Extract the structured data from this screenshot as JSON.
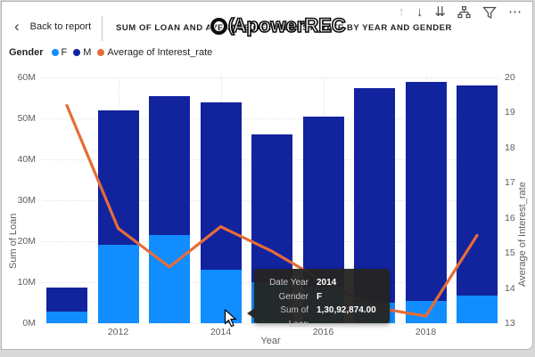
{
  "header": {
    "back_label": "Back to report",
    "title": "SUM OF LOAN AND AVERAGE OF INTEREST_RATE BY YEAR AND GENDER"
  },
  "toolbar": {
    "icons": [
      {
        "name": "drill-up",
        "glyph": "↑",
        "disabled": true
      },
      {
        "name": "drill-down",
        "glyph": "↓",
        "disabled": false
      },
      {
        "name": "go-to-next-level",
        "glyph": "⇊",
        "disabled": false
      },
      {
        "name": "expand-all-down",
        "glyph": "",
        "disabled": false
      },
      {
        "name": "filter",
        "glyph": "",
        "disabled": false
      },
      {
        "name": "more-options",
        "glyph": "⋯",
        "disabled": false
      }
    ]
  },
  "watermark": {
    "logo_glyph": "(",
    "text": "ApowerREC"
  },
  "legend": {
    "title": "Gender",
    "items": [
      {
        "label": "F",
        "color": "#118DFF"
      },
      {
        "label": "M",
        "color": "#12239E"
      },
      {
        "label": "Average of Interest_rate",
        "color": "#E66C37"
      }
    ]
  },
  "chart_data": {
    "type": "combo-stacked-bar-line",
    "x": [
      2011,
      2012,
      2013,
      2014,
      2015,
      2016,
      2017,
      2018,
      2019
    ],
    "series": [
      {
        "name": "F",
        "type": "bar",
        "color": "#118DFF",
        "values": [
          2900000,
          19100000,
          21500000,
          13092874,
          10000000,
          9000000,
          5000000,
          5500000,
          6800000
        ]
      },
      {
        "name": "M",
        "type": "bar",
        "color": "#12239E",
        "values": [
          5800000,
          32900000,
          34000000,
          40900000,
          36000000,
          41500000,
          52500000,
          53500000,
          51200000
        ]
      },
      {
        "name": "Average of Interest_rate",
        "type": "line",
        "color": "#E66C37",
        "axis": "right",
        "values": [
          19.2,
          15.7,
          14.6,
          15.75,
          15.05,
          14.2,
          13.45,
          13.2,
          15.5
        ]
      }
    ],
    "left_axis": {
      "title": "Sum of Loan",
      "min": 0,
      "max": 60000000,
      "tick_labels": [
        "0M",
        "10M",
        "20M",
        "30M",
        "40M",
        "50M",
        "60M"
      ]
    },
    "right_axis": {
      "title": "Average of Interest_rate",
      "min": 13,
      "max": 20,
      "tick_labels": [
        "13",
        "14",
        "15",
        "16",
        "17",
        "18",
        "19",
        "20"
      ]
    },
    "x_axis": {
      "title": "Year",
      "tick_labels": [
        "2012",
        "2014",
        "2016",
        "2018"
      ]
    },
    "grid": true,
    "legend_position": "top-left"
  },
  "tooltip": {
    "rows": [
      {
        "label": "Date Year",
        "value": "2014"
      },
      {
        "label": "Gender",
        "value": "F"
      },
      {
        "label": "Sum of Loan",
        "value": "1,30,92,874.00"
      }
    ]
  }
}
